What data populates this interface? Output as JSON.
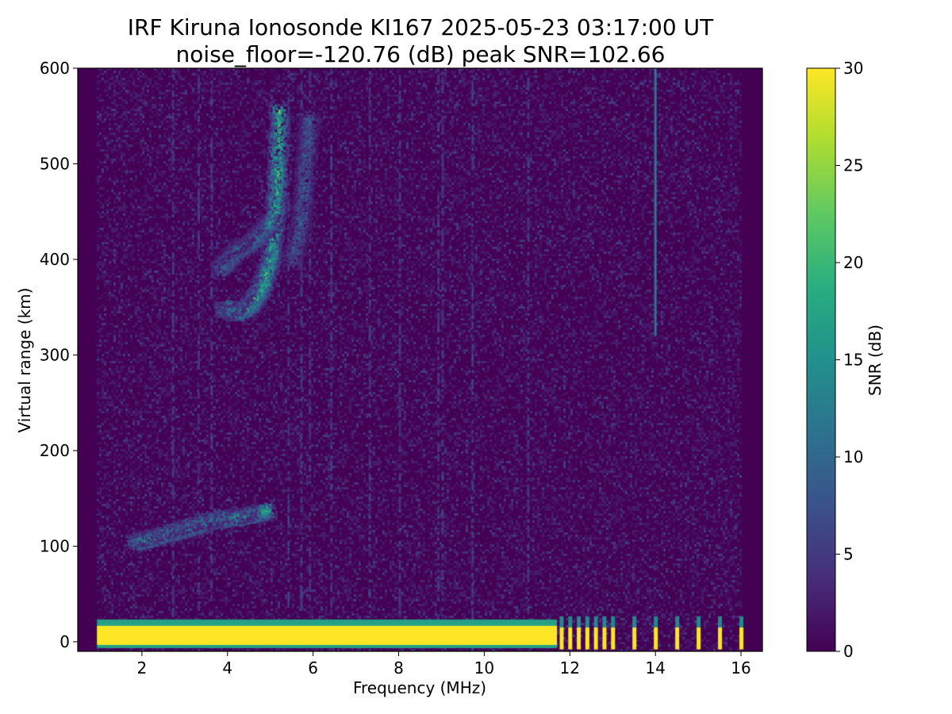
{
  "chart_data": {
    "type": "heatmap",
    "title": "IRF Kiruna Ionosonde KI167 2025-05-23 03:17:00  UT",
    "subtitle": "noise_floor=-120.76 (dB) peak SNR=102.66",
    "xlabel": "Frequency (MHz)",
    "ylabel": "Virtual range (km)",
    "xlim": [
      0.5,
      16.5
    ],
    "ylim": [
      -10,
      600
    ],
    "xticks": [
      "2",
      "4",
      "6",
      "8",
      "10",
      "12",
      "14",
      "16"
    ],
    "yticks": [
      "0",
      "100",
      "200",
      "300",
      "400",
      "500",
      "600"
    ],
    "colorbar": {
      "label": "SNR (dB)",
      "colormap": "viridis",
      "range": [
        0,
        30
      ],
      "ticks": [
        "0",
        "5",
        "10",
        "15",
        "20",
        "25",
        "30"
      ]
    },
    "data_extent": {
      "freq_min": 0.95,
      "freq_max": 16.0
    },
    "features": [
      {
        "name": "ground clutter band",
        "freq_range": [
          0.95,
          11.7
        ],
        "range_km": [
          0,
          20
        ],
        "snr_db": 30
      },
      {
        "name": "ground clutter strips",
        "freqs": [
          11.8,
          12.0,
          12.2,
          12.4,
          12.6,
          12.8,
          13.0,
          13.5,
          14.0,
          14.5,
          15.0,
          15.5,
          16.0
        ],
        "range_km": [
          0,
          15
        ],
        "snr_db": 30
      },
      {
        "name": "E-layer trace",
        "points": [
          [
            1.8,
            105
          ],
          [
            2.3,
            110
          ],
          [
            2.8,
            117
          ],
          [
            3.2,
            122
          ],
          [
            3.6,
            128
          ],
          [
            4.0,
            130
          ],
          [
            4.5,
            133
          ],
          [
            4.9,
            138
          ]
        ],
        "snr_db": 22
      },
      {
        "name": "F-layer trace (low branch)",
        "points": [
          [
            3.9,
            350
          ],
          [
            4.2,
            345
          ],
          [
            4.5,
            352
          ],
          [
            4.8,
            372
          ],
          [
            5.0,
            405
          ],
          [
            5.1,
            450
          ],
          [
            5.15,
            500
          ],
          [
            5.2,
            560
          ]
        ],
        "snr_db": 24
      },
      {
        "name": "F-layer trace (upper branch)",
        "points": [
          [
            3.8,
            390
          ],
          [
            4.2,
            410
          ],
          [
            4.6,
            420
          ],
          [
            5.0,
            440
          ]
        ],
        "snr_db": 16
      },
      {
        "name": "F-layer trace (extraordinary)",
        "points": [
          [
            5.5,
            400
          ],
          [
            5.7,
            440
          ],
          [
            5.8,
            500
          ],
          [
            5.9,
            550
          ]
        ],
        "snr_db": 12
      },
      {
        "name": "interference line",
        "freq": 14.0,
        "range_km": [
          320,
          600
        ],
        "snr_db": 12
      }
    ]
  }
}
